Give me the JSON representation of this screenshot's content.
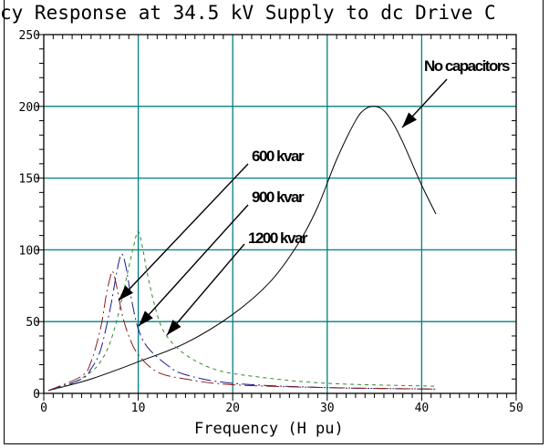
{
  "chart_data": {
    "type": "line",
    "title": "cy Response at 34.5 kV Supply to dc Drive C",
    "xlabel": "Frequency (H pu)",
    "ylabel": "",
    "xlim": [
      0,
      50
    ],
    "ylim": [
      0,
      250
    ],
    "xticks": [
      0,
      10,
      20,
      30,
      40,
      50
    ],
    "yticks": [
      0,
      50,
      100,
      150,
      200,
      250
    ],
    "grid": true,
    "series": [
      {
        "name": "No capacitors",
        "color": "#000000",
        "dash": "none",
        "x": [
          0.5,
          5,
          10,
          15,
          20,
          24,
          27,
          29,
          31,
          33,
          34,
          35,
          36,
          37,
          38,
          39,
          40,
          41.5
        ],
        "y": [
          2,
          10,
          22,
          35,
          55,
          78,
          105,
          130,
          163,
          190,
          198,
          200,
          197,
          188,
          175,
          160,
          145,
          125
        ]
      },
      {
        "name": "1200 kvar",
        "color": "#2e8b2e",
        "dash": "4,4",
        "x": [
          0.5,
          3,
          5,
          6,
          7,
          8,
          9,
          9.6,
          10,
          10.5,
          11,
          12,
          13,
          15,
          18,
          22,
          30,
          41.5
        ],
        "y": [
          2,
          7,
          15,
          22,
          35,
          58,
          88,
          105,
          113,
          100,
          82,
          55,
          40,
          27,
          17,
          12,
          7,
          5
        ]
      },
      {
        "name": "900 kvar",
        "color": "#1a1a8c",
        "dash": "14,4,2,4",
        "x": [
          0.5,
          4,
          5,
          6,
          7,
          7.6,
          8,
          8.3,
          8.7,
          9.3,
          10,
          11,
          13,
          15,
          20,
          30,
          41.5
        ],
        "y": [
          2,
          10,
          17,
          30,
          58,
          80,
          93,
          97,
          88,
          65,
          45,
          32,
          20,
          13,
          7,
          4,
          3
        ]
      },
      {
        "name": "600 kvar",
        "color": "#8b1a1a",
        "dash": "14,4,2,4",
        "x": [
          0.5,
          4,
          5,
          6,
          6.6,
          7,
          7.3,
          7.7,
          8.3,
          9,
          10,
          12,
          15,
          20,
          30,
          41.5
        ],
        "y": [
          2,
          12,
          22,
          45,
          68,
          80,
          85,
          75,
          55,
          40,
          27,
          15,
          10,
          6,
          4,
          3
        ]
      }
    ],
    "annotations": [
      {
        "text": "No capacitors",
        "series": "No capacitors"
      },
      {
        "text": "600 kvar",
        "series": "600 kvar"
      },
      {
        "text": "900 kvar",
        "series": "900 kvar"
      },
      {
        "text": "1200 kvar",
        "series": "1200 kvar"
      }
    ]
  }
}
